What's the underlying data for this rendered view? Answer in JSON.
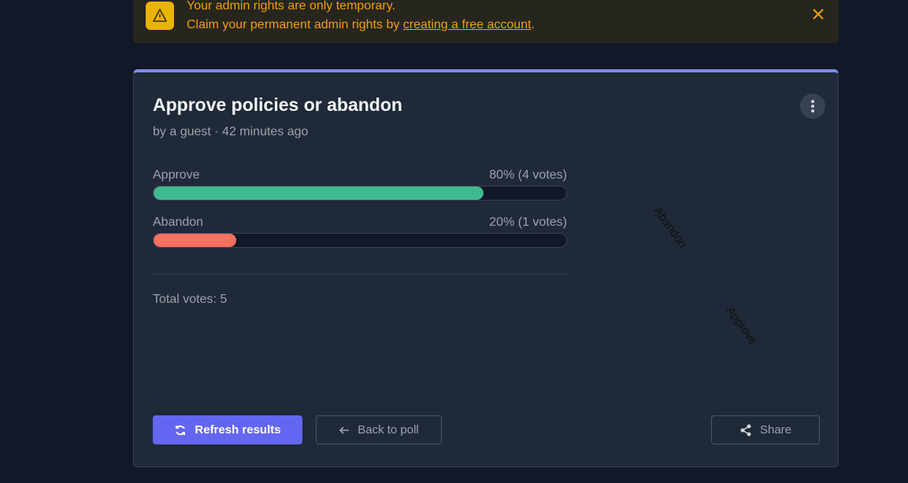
{
  "banner": {
    "title": "Your admin rights are only temporary.",
    "text": "Claim your permanent admin rights by ",
    "link": "creating a free account",
    "end": "."
  },
  "poll": {
    "title": "Approve policies or abandon",
    "meta": "by a guest · 42 minutes ago",
    "options": [
      {
        "name": "Approve",
        "percent": 80,
        "label": "80% (4 votes)",
        "color": "#3fb991"
      },
      {
        "name": "Abandon",
        "percent": 20,
        "label": "20% (1 votes)",
        "color": "#f87060"
      }
    ],
    "total": "Total votes: 5"
  },
  "buttons": {
    "refresh": "Refresh results",
    "back": "Back to poll",
    "share": "Share"
  }
}
